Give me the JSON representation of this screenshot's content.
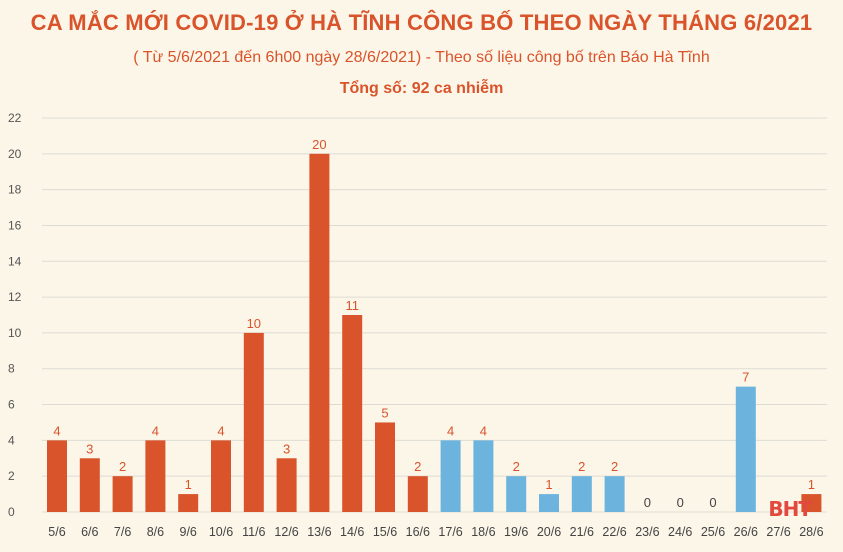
{
  "header": {
    "title": "CA MẮC MỚI COVID-19 Ở HÀ TĨNH CÔNG BỐ THEO NGÀY THÁNG 6/2021",
    "subtitle": "( Từ 5/6/2021 đến 6h00 ngày 28/6/2021) - Theo số liệu công bố trên Báo Hà Tĩnh",
    "total": "Tổng số: 92 ca nhiễm"
  },
  "logo": "BHT",
  "chart_data": {
    "type": "bar",
    "title": "CA MẮC MỚI COVID-19 Ở HÀ TĨNH CÔNG BỐ THEO NGÀY THÁNG 6/2021",
    "xlabel": "",
    "ylabel": "",
    "ylim": [
      0,
      22
    ],
    "yticks": [
      0,
      2,
      4,
      6,
      8,
      10,
      12,
      14,
      16,
      18,
      20,
      22
    ],
    "grid": true,
    "categories": [
      "5/6",
      "6/6",
      "7/6",
      "8/6",
      "9/6",
      "10/6",
      "11/6",
      "12/6",
      "13/6",
      "14/6",
      "15/6",
      "16/6",
      "17/6",
      "18/6",
      "19/6",
      "20/6",
      "21/6",
      "22/6",
      "23/6",
      "24/6",
      "25/6",
      "26/6",
      "27/6",
      "28/6"
    ],
    "values": [
      4,
      3,
      2,
      4,
      1,
      4,
      10,
      3,
      20,
      11,
      5,
      2,
      4,
      4,
      2,
      1,
      2,
      2,
      0,
      0,
      0,
      7,
      null,
      1
    ],
    "value_labels": [
      "4",
      "3",
      "2",
      "4",
      "1",
      "4",
      "10",
      "3",
      "20",
      "11",
      "5",
      "2",
      "4",
      "4",
      "2",
      "1",
      "2",
      "2",
      "0",
      "0",
      "0",
      "7",
      "",
      "1"
    ],
    "colors": [
      "#d9532b",
      "#d9532b",
      "#d9532b",
      "#d9532b",
      "#d9532b",
      "#d9532b",
      "#d9532b",
      "#d9532b",
      "#d9532b",
      "#d9532b",
      "#d9532b",
      "#d9532b",
      "#6cb4de",
      "#6cb4de",
      "#6cb4de",
      "#6cb4de",
      "#6cb4de",
      "#6cb4de",
      "#6cb4de",
      "#6cb4de",
      "#6cb4de",
      "#6cb4de",
      "#6cb4de",
      "#d9532b"
    ],
    "label_colors": {
      "orange": "#d9532b",
      "blue": "#d9532b",
      "zero": "#444444"
    }
  }
}
